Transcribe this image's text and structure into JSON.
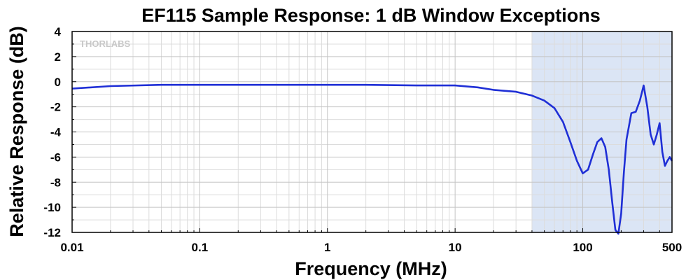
{
  "chart_data": {
    "type": "line",
    "title": "EF115 Sample Response: 1 dB Window Exceptions",
    "xlabel": "Frequency (MHz)",
    "ylabel": "Relative Response (dB)",
    "x_scale": "log",
    "xlim": [
      0.01,
      500
    ],
    "ylim": [
      -12,
      4
    ],
    "x_ticks": [
      0.01,
      0.1,
      1,
      10,
      100,
      500
    ],
    "x_tick_labels": [
      "0.01",
      "0.1",
      "1",
      "10",
      "100",
      "500"
    ],
    "y_ticks": [
      4,
      2,
      0,
      -2,
      -4,
      -6,
      -8,
      -10,
      -12
    ],
    "y_tick_labels": [
      "4",
      "2",
      "0",
      "-2",
      "-4",
      "-6",
      "-8",
      "-10",
      "-12"
    ],
    "grid": true,
    "watermark": "THORLABS",
    "shaded_region": {
      "x": [
        40,
        500
      ],
      "color": "#dbe5f5"
    },
    "series": [
      {
        "color": "#1f2fd6",
        "x": [
          0.01,
          0.02,
          0.05,
          0.1,
          0.2,
          0.5,
          1,
          2,
          5,
          10,
          15,
          20,
          30,
          40,
          50,
          60,
          70,
          80,
          90,
          100,
          110,
          120,
          130,
          140,
          150,
          160,
          170,
          180,
          190,
          200,
          210,
          220,
          240,
          260,
          280,
          300,
          320,
          340,
          360,
          380,
          400,
          420,
          440,
          460,
          480,
          500
        ],
        "y": [
          -0.55,
          -0.35,
          -0.25,
          -0.25,
          -0.25,
          -0.25,
          -0.25,
          -0.25,
          -0.3,
          -0.3,
          -0.45,
          -0.65,
          -0.8,
          -1.1,
          -1.5,
          -2.1,
          -3.2,
          -4.8,
          -6.3,
          -7.3,
          -7.0,
          -5.8,
          -4.8,
          -4.5,
          -5.2,
          -7.0,
          -9.6,
          -11.8,
          -12.1,
          -10.5,
          -7.2,
          -4.6,
          -2.5,
          -2.4,
          -1.5,
          -0.3,
          -2.0,
          -4.2,
          -5.0,
          -4.2,
          -3.3,
          -5.6,
          -6.7,
          -6.3,
          -6.0,
          -6.3
        ]
      }
    ]
  }
}
